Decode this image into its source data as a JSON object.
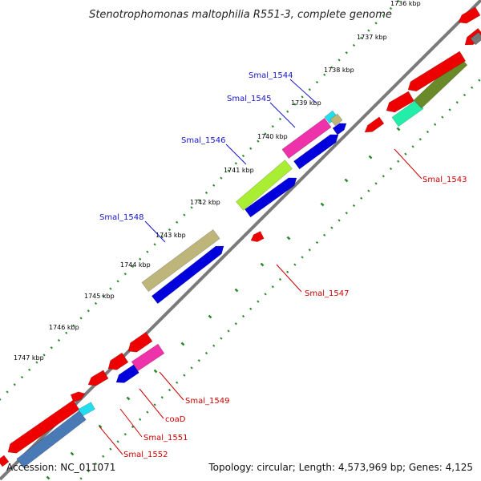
{
  "title": "Stenotrophomonas maltophilia R551-3, complete genome",
  "footer": {
    "accession": "Accession: NC_011071",
    "topology": "Topology: circular; Length: 4,573,969 bp; Genes: 4,125"
  },
  "scale_ticks": [
    "1736 kbp",
    "1737 kbp",
    "1738 kbp",
    "1739 kbp",
    "1740 kbp",
    "1741 kbp",
    "1742 kbp",
    "1743 kbp",
    "1744 kbp",
    "1745 kbp",
    "1746 kbp",
    "1747 kbp"
  ],
  "colors": {
    "backbone": "#7a7a7a",
    "tick_dots": "#2a8a2a",
    "label_blue": "#1515c8",
    "label_red": "#cc0000",
    "red_gene": "#ee0000",
    "blue_gene": "#0000dd",
    "olive_gene": "#bdb57a",
    "lime_gene": "#aaee33",
    "magenta_gene": "#ee33aa",
    "cyan_gene": "#22ddee",
    "teal_gene": "#22eeaa",
    "dark_olive_gene": "#6a8a2a",
    "steel_gene": "#4a7ab5"
  },
  "gene_labels": [
    {
      "id": "smal_1544",
      "text": "Smal_1544",
      "color": "blue"
    },
    {
      "id": "smal_1545",
      "text": "Smal_1545",
      "color": "blue"
    },
    {
      "id": "smal_1546",
      "text": "Smal_1546",
      "color": "blue"
    },
    {
      "id": "smal_1548",
      "text": "Smal_1548",
      "color": "blue"
    },
    {
      "id": "smal_1543",
      "text": "Smal_1543",
      "color": "red"
    },
    {
      "id": "smal_1547",
      "text": "Smal_1547",
      "color": "red"
    },
    {
      "id": "smal_1549",
      "text": "Smal_1549",
      "color": "red"
    },
    {
      "id": "coad",
      "text": "coaD",
      "color": "red"
    },
    {
      "id": "smal_1551",
      "text": "Smal_1551",
      "color": "red"
    },
    {
      "id": "smal_1552",
      "text": "Smal_1552",
      "color": "red"
    }
  ]
}
